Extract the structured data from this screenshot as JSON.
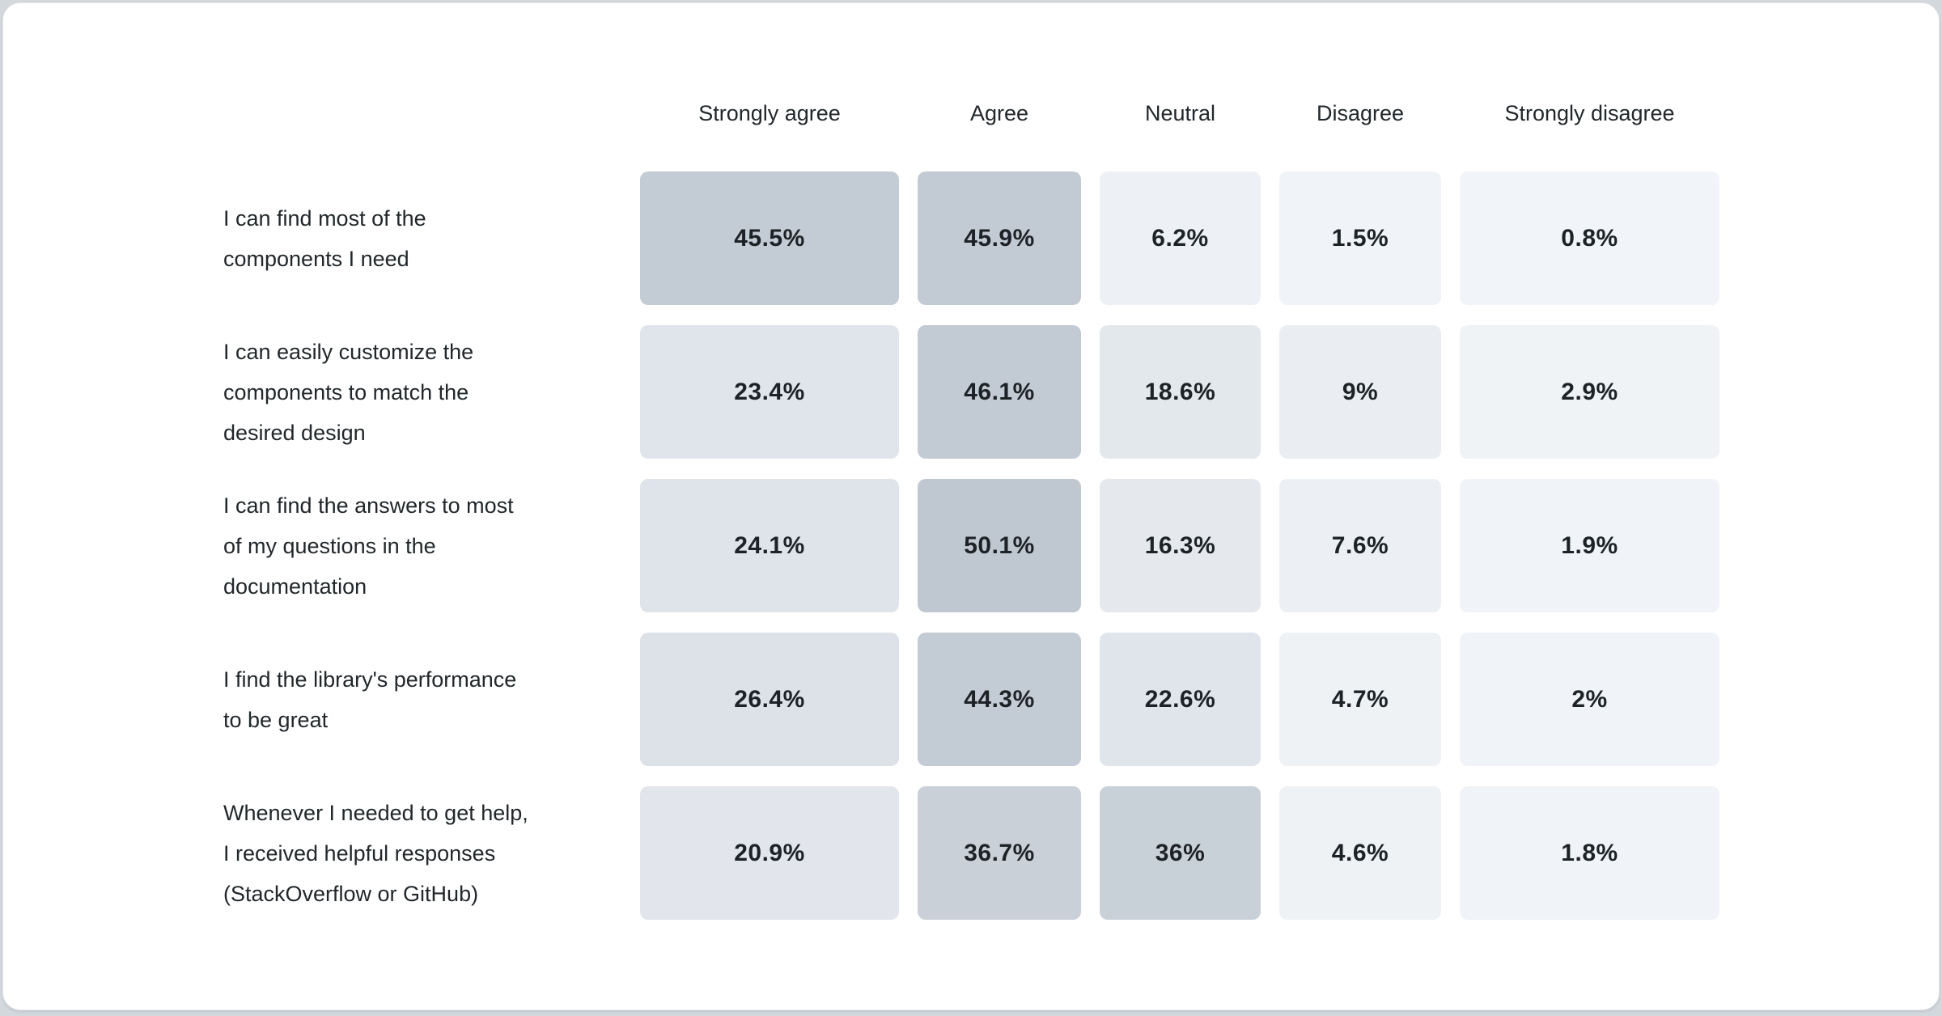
{
  "page": {
    "background_color": "#d3d8dd",
    "card_background_color": "#ffffff",
    "text_color": "#21272a"
  },
  "chart_data": {
    "type": "heatmap",
    "title": "",
    "columns": [
      "Strongly agree",
      "Agree",
      "Neutral",
      "Disagree",
      "Strongly disagree"
    ],
    "color_scale": {
      "low": "#f2f5f8",
      "high": "#bfc8d1",
      "low_value": 0,
      "high_value": 50.1
    },
    "rows": [
      {
        "label": "I can find most of the\ncomponents I need",
        "values": [
          45.5,
          45.9,
          6.2,
          1.5,
          0.8
        ],
        "cells": [
          {
            "label": "45.5%",
            "color": "#c3cbd4"
          },
          {
            "label": "45.9%",
            "color": "#c2cad3"
          },
          {
            "label": "6.2%",
            "color": "#edf1f5"
          },
          {
            "label": "1.5%",
            "color": "#f0f3f7"
          },
          {
            "label": "0.8%",
            "color": "#f1f4f8"
          }
        ]
      },
      {
        "label": "I can easily customize the\ncomponents to match the\ndesired design",
        "values": [
          23.4,
          46.1,
          18.6,
          9,
          2.9
        ],
        "cells": [
          {
            "label": "23.4%",
            "color": "#e0e5eb"
          },
          {
            "label": "46.1%",
            "color": "#c2cad3"
          },
          {
            "label": "18.6%",
            "color": "#e3e8ed"
          },
          {
            "label": "9%",
            "color": "#eaeef2"
          },
          {
            "label": "2.9%",
            "color": "#eff3f6"
          }
        ]
      },
      {
        "label": "I can find the answers to most\nof my questions in the\ndocumentation",
        "values": [
          24.1,
          50.1,
          16.3,
          7.6,
          1.9
        ],
        "cells": [
          {
            "label": "24.1%",
            "color": "#dfe4ea"
          },
          {
            "label": "50.1%",
            "color": "#bfc8d1"
          },
          {
            "label": "16.3%",
            "color": "#e5e9ee"
          },
          {
            "label": "7.6%",
            "color": "#ecf0f4"
          },
          {
            "label": "1.9%",
            "color": "#f0f3f7"
          }
        ]
      },
      {
        "label": "I find the library's performance\nto be great",
        "values": [
          26.4,
          44.3,
          22.6,
          4.7,
          2
        ],
        "cells": [
          {
            "label": "26.4%",
            "color": "#dde2e8"
          },
          {
            "label": "44.3%",
            "color": "#c3cbd4"
          },
          {
            "label": "22.6%",
            "color": "#e0e5eb"
          },
          {
            "label": "4.7%",
            "color": "#eef2f5"
          },
          {
            "label": "2%",
            "color": "#f0f3f7"
          }
        ]
      },
      {
        "label": "Whenever I needed to get help,\nI received helpful responses\n(StackOverflow or GitHub)",
        "values": [
          20.9,
          36.7,
          36,
          4.6,
          1.8
        ],
        "cells": [
          {
            "label": "20.9%",
            "color": "#e2e6ec"
          },
          {
            "label": "36.7%",
            "color": "#c9d0d8"
          },
          {
            "label": "36%",
            "color": "#c9d1d8"
          },
          {
            "label": "4.6%",
            "color": "#eef2f5"
          },
          {
            "label": "1.8%",
            "color": "#f0f3f7"
          }
        ]
      }
    ]
  }
}
